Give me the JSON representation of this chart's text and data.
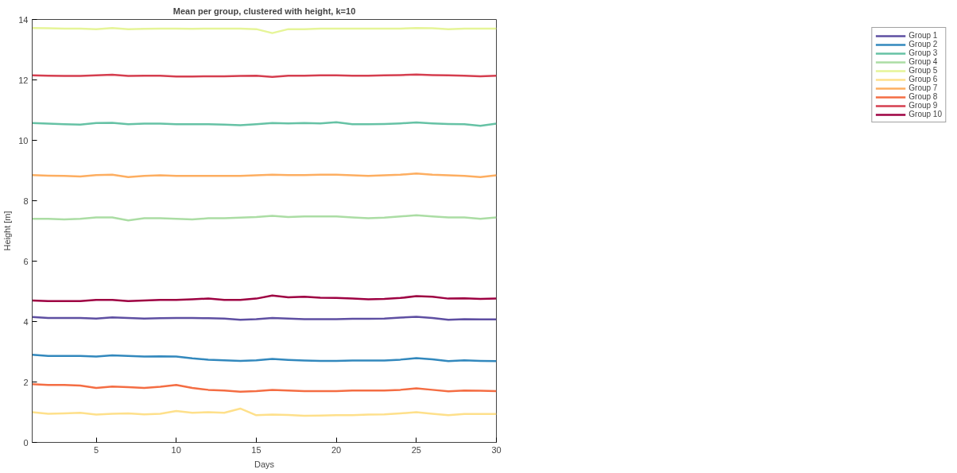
{
  "chart_data": {
    "type": "line",
    "title": "Mean per group, clustered with height, k=10",
    "xlabel": "Days",
    "ylabel": "Height [m]",
    "x": [
      1,
      2,
      3,
      4,
      5,
      6,
      7,
      8,
      9,
      10,
      11,
      12,
      13,
      14,
      15,
      16,
      17,
      18,
      19,
      20,
      21,
      22,
      23,
      24,
      25,
      26,
      27,
      28,
      29,
      30
    ],
    "xlim": [
      1,
      30
    ],
    "xticks": [
      5,
      10,
      15,
      20,
      25,
      30
    ],
    "ylim": [
      0,
      14
    ],
    "yticks": [
      0,
      2,
      4,
      6,
      8,
      10,
      12,
      14
    ],
    "grid": false,
    "legend": "top right",
    "marker": "none",
    "line_style": "solid",
    "series": [
      {
        "name": "Group 1",
        "color": "#5e4fa2",
        "values": [
          4.15,
          4.12,
          4.12,
          4.12,
          4.1,
          4.14,
          4.12,
          4.1,
          4.11,
          4.12,
          4.12,
          4.11,
          4.1,
          4.06,
          4.08,
          4.12,
          4.1,
          4.08,
          4.08,
          4.08,
          4.09,
          4.09,
          4.1,
          4.13,
          4.16,
          4.12,
          4.06,
          4.08,
          4.07,
          4.07
        ]
      },
      {
        "name": "Group 2",
        "color": "#3288bd",
        "values": [
          2.9,
          2.86,
          2.86,
          2.86,
          2.84,
          2.88,
          2.86,
          2.84,
          2.85,
          2.84,
          2.78,
          2.74,
          2.72,
          2.7,
          2.72,
          2.76,
          2.73,
          2.71,
          2.7,
          2.7,
          2.71,
          2.71,
          2.71,
          2.74,
          2.79,
          2.75,
          2.69,
          2.72,
          2.7,
          2.69
        ]
      },
      {
        "name": "Group 3",
        "color": "#66c2a5",
        "values": [
          10.57,
          10.55,
          10.53,
          10.52,
          10.57,
          10.58,
          10.53,
          10.55,
          10.55,
          10.53,
          10.53,
          10.53,
          10.52,
          10.5,
          10.53,
          10.57,
          10.56,
          10.57,
          10.56,
          10.6,
          10.53,
          10.53,
          10.54,
          10.56,
          10.59,
          10.56,
          10.54,
          10.53,
          10.48,
          10.55
        ]
      },
      {
        "name": "Group 4",
        "color": "#abdda4",
        "values": [
          7.4,
          7.4,
          7.38,
          7.4,
          7.45,
          7.45,
          7.35,
          7.42,
          7.42,
          7.4,
          7.38,
          7.42,
          7.42,
          7.44,
          7.46,
          7.5,
          7.46,
          7.48,
          7.48,
          7.48,
          7.45,
          7.42,
          7.44,
          7.48,
          7.52,
          7.48,
          7.45,
          7.45,
          7.4,
          7.45
        ]
      },
      {
        "name": "Group 5",
        "color": "#e6f598",
        "values": [
          13.72,
          13.71,
          13.7,
          13.7,
          13.68,
          13.72,
          13.68,
          13.69,
          13.7,
          13.7,
          13.69,
          13.7,
          13.7,
          13.7,
          13.68,
          13.55,
          13.68,
          13.68,
          13.7,
          13.7,
          13.7,
          13.7,
          13.7,
          13.7,
          13.72,
          13.71,
          13.68,
          13.7,
          13.7,
          13.7
        ]
      },
      {
        "name": "Group 6",
        "color": "#fee08b",
        "values": [
          1.0,
          0.95,
          0.96,
          0.98,
          0.92,
          0.95,
          0.96,
          0.93,
          0.95,
          1.04,
          0.98,
          1.0,
          0.98,
          1.12,
          0.9,
          0.92,
          0.91,
          0.88,
          0.89,
          0.9,
          0.9,
          0.92,
          0.93,
          0.96,
          1.0,
          0.95,
          0.9,
          0.94,
          0.94,
          0.94
        ]
      },
      {
        "name": "Group 7",
        "color": "#fdae61",
        "values": [
          8.85,
          8.83,
          8.82,
          8.8,
          8.85,
          8.86,
          8.78,
          8.82,
          8.84,
          8.82,
          8.82,
          8.82,
          8.82,
          8.82,
          8.84,
          8.86,
          8.85,
          8.85,
          8.86,
          8.86,
          8.84,
          8.82,
          8.84,
          8.86,
          8.9,
          8.86,
          8.84,
          8.82,
          8.78,
          8.84
        ]
      },
      {
        "name": "Group 8",
        "color": "#f46d43",
        "values": [
          1.93,
          1.9,
          1.9,
          1.88,
          1.8,
          1.85,
          1.83,
          1.8,
          1.84,
          1.9,
          1.8,
          1.74,
          1.72,
          1.68,
          1.7,
          1.74,
          1.72,
          1.7,
          1.7,
          1.7,
          1.72,
          1.72,
          1.72,
          1.74,
          1.79,
          1.74,
          1.69,
          1.72,
          1.71,
          1.7
        ]
      },
      {
        "name": "Group 9",
        "color": "#d53e4f",
        "values": [
          12.15,
          12.14,
          12.13,
          12.13,
          12.15,
          12.17,
          12.13,
          12.14,
          12.14,
          12.11,
          12.11,
          12.12,
          12.12,
          12.13,
          12.14,
          12.1,
          12.14,
          12.14,
          12.15,
          12.15,
          12.14,
          12.14,
          12.15,
          12.16,
          12.18,
          12.16,
          12.15,
          12.14,
          12.12,
          12.14
        ]
      },
      {
        "name": "Group 10",
        "color": "#9e0142",
        "values": [
          4.7,
          4.68,
          4.68,
          4.68,
          4.72,
          4.72,
          4.68,
          4.7,
          4.72,
          4.72,
          4.74,
          4.76,
          4.72,
          4.72,
          4.76,
          4.86,
          4.8,
          4.82,
          4.79,
          4.78,
          4.76,
          4.74,
          4.75,
          4.78,
          4.84,
          4.82,
          4.76,
          4.77,
          4.75,
          4.76
        ]
      }
    ]
  }
}
